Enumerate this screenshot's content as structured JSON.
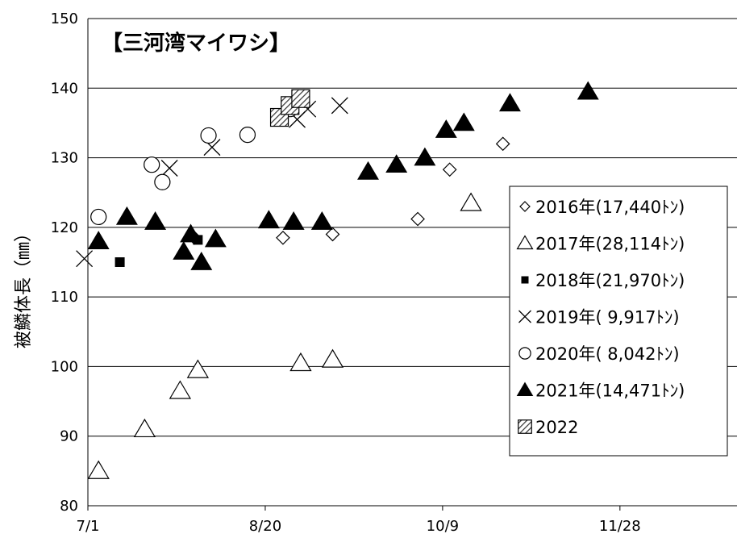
{
  "chart_data": {
    "type": "scatter",
    "title": "【三河湾マイワシ】",
    "xlabel": "",
    "ylabel": "被鱗体長（㎜）",
    "ylim": [
      80,
      150
    ],
    "yticks": [
      80,
      90,
      100,
      110,
      120,
      130,
      140,
      150
    ],
    "xlim": [
      "7/1",
      "12/31"
    ],
    "xticks": [
      "7/1",
      "8/20",
      "10/9",
      "11/28"
    ],
    "grid": "horizontal",
    "legend_position": "right",
    "series": [
      {
        "name": "2016年(17,440ﾄﾝ)",
        "marker": "diamond-open",
        "color": "#000000",
        "points": [
          [
            "7/31",
            118.5
          ],
          [
            "8/25",
            118.5
          ],
          [
            "9/8",
            119
          ],
          [
            "10/2",
            121.2
          ],
          [
            "10/11",
            128.3
          ],
          [
            "10/26",
            132
          ]
        ]
      },
      {
        "name": "2017年(28,114ﾄﾝ)",
        "marker": "triangle-open",
        "color": "#000000",
        "points": [
          [
            "7/4",
            85
          ],
          [
            "7/17",
            91
          ],
          [
            "7/27",
            96.5
          ],
          [
            "8/1",
            99.5
          ],
          [
            "8/30",
            100.5
          ],
          [
            "9/8",
            101
          ],
          [
            "10/17",
            123.5
          ]
        ]
      },
      {
        "name": "2018年(21,970ﾄﾝ)",
        "marker": "square-filled",
        "color": "#000000",
        "points": [
          [
            "7/10",
            115
          ],
          [
            "8/1",
            118.2
          ]
        ]
      },
      {
        "name": "2019年( 9,917ﾄﾝ)",
        "marker": "cross",
        "color": "#000000",
        "points": [
          [
            "6/30",
            115.5
          ],
          [
            "7/24",
            128.5
          ],
          [
            "8/5",
            131.5
          ],
          [
            "8/29",
            135.5
          ],
          [
            "9/1",
            137
          ],
          [
            "9/10",
            137.5
          ]
        ]
      },
      {
        "name": "2020年( 8,042ﾄﾝ)",
        "marker": "circle-open",
        "color": "#000000",
        "points": [
          [
            "7/4",
            121.5
          ],
          [
            "7/19",
            129
          ],
          [
            "7/22",
            126.5
          ],
          [
            "8/4",
            133.2
          ],
          [
            "8/15",
            133.3
          ],
          [
            "8/27",
            137
          ]
        ]
      },
      {
        "name": "2021年(14,471ﾄﾝ)",
        "marker": "triangle-filled",
        "color": "#000000",
        "points": [
          [
            "7/4",
            118
          ],
          [
            "7/12",
            121.5
          ],
          [
            "7/20",
            120.8
          ],
          [
            "7/28",
            116.5
          ],
          [
            "7/30",
            119
          ],
          [
            "8/2",
            115
          ],
          [
            "8/6",
            118.3
          ],
          [
            "8/21",
            121
          ],
          [
            "8/28",
            120.8
          ],
          [
            "9/5",
            120.8
          ],
          [
            "9/18",
            128
          ],
          [
            "9/26",
            129
          ],
          [
            "10/4",
            130
          ],
          [
            "10/10",
            134
          ],
          [
            "10/15",
            135
          ],
          [
            "10/28",
            137.8
          ],
          [
            "11/19",
            139.5
          ]
        ]
      },
      {
        "name": "2022",
        "marker": "square-hatched",
        "color": "#000000",
        "points": [
          [
            "8/24",
            135.8
          ],
          [
            "8/27",
            137.5
          ],
          [
            "8/30",
            138.5
          ]
        ]
      }
    ]
  }
}
